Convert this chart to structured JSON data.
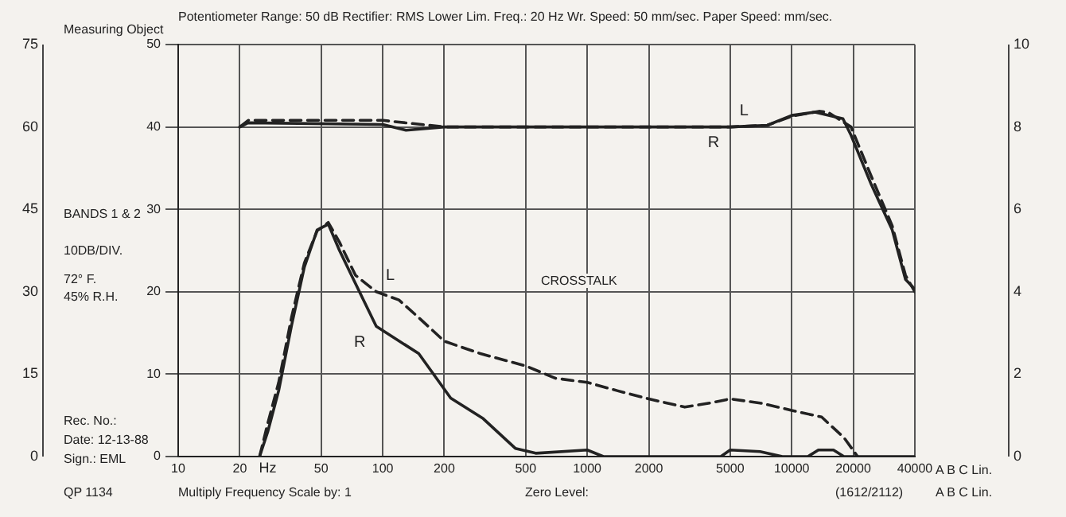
{
  "chart_data": {
    "type": "line",
    "xlabel": "Hz",
    "log": "x",
    "xlim": [
      10,
      40000
    ],
    "xticks": [
      10,
      20,
      50,
      100,
      200,
      500,
      1000,
      2000,
      5000,
      10000,
      20000,
      40000
    ],
    "ylim": [
      0,
      50
    ],
    "yticks": [
      0,
      10,
      20,
      30,
      40,
      50
    ],
    "y2lim": [
      0,
      75
    ],
    "y2ticks": [
      0,
      15,
      30,
      45,
      60,
      75
    ],
    "y3lim": [
      0,
      10
    ],
    "y3ticks": [
      0,
      2,
      4,
      6,
      8,
      10
    ],
    "grid": true,
    "legend": false,
    "marker": "none",
    "series": [
      {
        "name": "L",
        "color": "#222222",
        "line_style": "dashed",
        "x": [
          20,
          22,
          100,
          200,
          1000,
          5000,
          7600,
          10000,
          13600,
          15000,
          19500,
          24500,
          31000,
          36000,
          40000
        ],
        "values": [
          40,
          40.8,
          40.8,
          40,
          40,
          40,
          40.2,
          41.3,
          41.9,
          41.8,
          40,
          34,
          28,
          22,
          20
        ]
      },
      {
        "name": "R",
        "color": "#222222",
        "line_style": "solid",
        "x": [
          20,
          22,
          100,
          130,
          200,
          5000,
          7600,
          10000,
          13000,
          17800,
          19500,
          24500,
          31000,
          36000,
          40000
        ],
        "values": [
          40,
          40.5,
          40.3,
          39.6,
          40,
          40,
          40.2,
          41.4,
          41.8,
          41,
          39,
          33,
          27.5,
          21.5,
          20.3
        ]
      },
      {
        "name": "L",
        "color": "#222222",
        "line_style": "dashed",
        "x": [
          25,
          27.4,
          31,
          35.9,
          41.4,
          47.8,
          54.2,
          61.5,
          73.6,
          93,
          120,
          151,
          200,
          300,
          500,
          700,
          1000,
          1400,
          2000,
          3000,
          4000,
          5000,
          7000,
          10000,
          14000,
          18000,
          21000
        ],
        "values": [
          0,
          4,
          9,
          17,
          23.5,
          27.4,
          28.4,
          26,
          22,
          20,
          19,
          16.8,
          14,
          12.5,
          11,
          9.5,
          9,
          8,
          7,
          6,
          6.5,
          7,
          6.5,
          5.6,
          4.8,
          2.3,
          0
        ]
      },
      {
        "name": "R",
        "color": "#222222",
        "line_style": "solid",
        "x": [
          25,
          27.4,
          31,
          35.9,
          41.4,
          47.8,
          54.2,
          61.5,
          73.6,
          93,
          150,
          215,
          310,
          445,
          560,
          1000,
          1200,
          3000,
          4500,
          5000,
          7000,
          9000,
          12000,
          13500,
          16000,
          18000,
          40000
        ],
        "values": [
          0,
          3,
          8,
          16,
          23,
          27.5,
          28.2,
          25,
          21,
          15.8,
          12.5,
          7.1,
          4.6,
          1,
          0.4,
          0.8,
          0,
          0,
          0,
          0.8,
          0.6,
          0,
          0,
          0.8,
          0.8,
          0,
          0
        ]
      }
    ],
    "annotations": [
      "Potentiometer Range: 50 dB Rectifier: RMS Lower Lim. Freq.: 20 Hz Wr. Speed: 50 mm/sec. Paper Speed: mm/sec.",
      "Measuring Object",
      "BANDS 1 & 2",
      "10DB/DIV.",
      "72° F.",
      "45% R.H.",
      "Rec. No.:",
      "Date: 12-13-88",
      "Sign.: EML",
      "QP 1134",
      "Multiply Frequency Scale by: 1",
      "Zero Level:",
      "(1612/2112)",
      "A B C Lin.",
      "A B C Lin.",
      "CROSSTALK"
    ]
  }
}
